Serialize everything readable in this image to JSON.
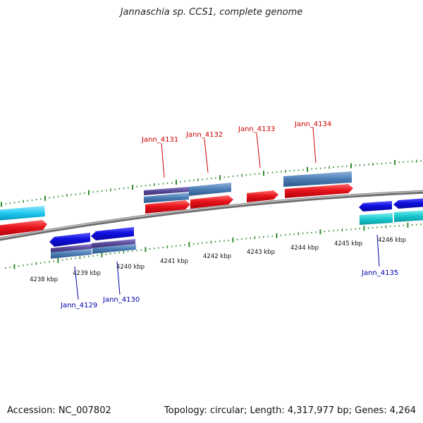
{
  "header": {
    "title": "Jannaschia sp. CCS1, complete genome"
  },
  "footer": {
    "accession": "Accession: NC_007802",
    "info": "Topology: circular; Length: 4,317,977 bp; Genes: 4,264"
  },
  "colors": {
    "forward_gene": "#e8141c",
    "forward_cds": "#4a7db5",
    "forward_cds_alt": "#1ec8f0",
    "reverse_gene": "#1010e0",
    "reverse_cds": "#4a7db5",
    "reverse_cds_alt": "#17c9cf",
    "pseudo_band": "#5a4a9a",
    "backbone": "#8a8a8a",
    "ticks": "#2e8b2e",
    "forward_label": "#cc0000",
    "reverse_label": "#0000aa"
  },
  "scale": {
    "unit": "kbp",
    "labels": [
      "4238 kbp",
      "4239 kbp",
      "4240 kbp",
      "4241 kbp",
      "4242 kbp",
      "4243 kbp",
      "4244 kbp",
      "4245 kbp",
      "4246 kbp"
    ]
  },
  "genes": {
    "forward": [
      "Jann_4131",
      "Jann_4132",
      "Jann_4133",
      "Jann_4134"
    ],
    "reverse": [
      "Jann_4129",
      "Jann_4130",
      "Jann_4135"
    ]
  }
}
